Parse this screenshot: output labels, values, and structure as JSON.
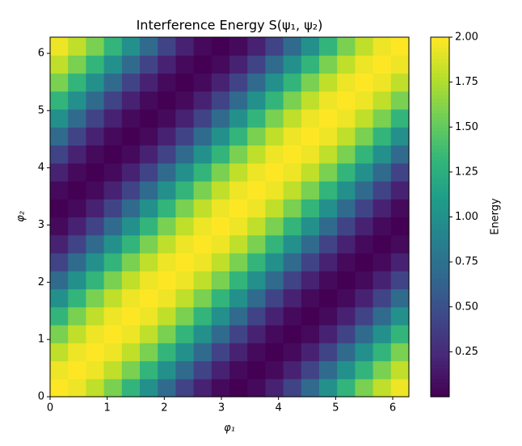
{
  "chart_data": {
    "type": "heatmap",
    "title": "Interference Energy S(ψ₁, ψ₂)",
    "x_label": "φ₁",
    "y_label": "φ₂",
    "colorbar_label": "Energy",
    "colormap": "viridis",
    "xlim": [
      0,
      6.283
    ],
    "ylim": [
      0,
      6.283
    ],
    "xticks": [
      0,
      1,
      2,
      3,
      4,
      5,
      6
    ],
    "yticks": [
      0,
      1,
      2,
      3,
      4,
      5,
      6
    ],
    "clim": [
      0,
      2
    ],
    "cticks": [
      {
        "value": 2,
        "label": "2.00"
      },
      1.75,
      {
        "value": 1.5,
        "label": "1.50"
      },
      1.25,
      {
        "value": 1,
        "label": "1.00"
      },
      0.75,
      {
        "value": 0.5,
        "label": "0.50"
      },
      0.25
    ],
    "z": [
      [
        2,
        1.95,
        1.81,
        1.59,
        1.31,
        1,
        0.69,
        0.41,
        0.19,
        0.05,
        0,
        0.05,
        0.19,
        0.41,
        0.69,
        1,
        1.31,
        1.59,
        1.81,
        1.95
      ],
      [
        1.95,
        2,
        1.95,
        1.81,
        1.59,
        1.31,
        1,
        0.69,
        0.41,
        0.19,
        0.05,
        0,
        0.05,
        0.19,
        0.41,
        0.69,
        1,
        1.31,
        1.59,
        1.81
      ],
      [
        1.81,
        1.95,
        2,
        1.95,
        1.81,
        1.59,
        1.31,
        1,
        0.69,
        0.41,
        0.19,
        0.05,
        0,
        0.05,
        0.19,
        0.41,
        0.69,
        1,
        1.31,
        1.59
      ],
      [
        1.59,
        1.81,
        1.95,
        2,
        1.95,
        1.81,
        1.59,
        1.31,
        1,
        0.69,
        0.41,
        0.19,
        0.05,
        0,
        0.05,
        0.19,
        0.41,
        0.69,
        1,
        1.31
      ],
      [
        1.31,
        1.59,
        1.81,
        1.95,
        2,
        1.95,
        1.81,
        1.59,
        1.31,
        1,
        0.69,
        0.41,
        0.19,
        0.05,
        0,
        0.05,
        0.19,
        0.41,
        0.69,
        1
      ],
      [
        1,
        1.31,
        1.59,
        1.81,
        1.95,
        2,
        1.95,
        1.81,
        1.59,
        1.31,
        1,
        0.69,
        0.41,
        0.19,
        0.05,
        0,
        0.05,
        0.19,
        0.41,
        0.69
      ],
      [
        0.69,
        1,
        1.31,
        1.59,
        1.81,
        1.95,
        2,
        1.95,
        1.81,
        1.59,
        1.31,
        1,
        0.69,
        0.41,
        0.19,
        0.05,
        0,
        0.05,
        0.19,
        0.41
      ],
      [
        0.41,
        0.69,
        1,
        1.31,
        1.59,
        1.81,
        1.95,
        2,
        1.95,
        1.81,
        1.59,
        1.31,
        1,
        0.69,
        0.41,
        0.19,
        0.05,
        0,
        0.05,
        0.19
      ],
      [
        0.19,
        0.41,
        0.69,
        1,
        1.31,
        1.59,
        1.81,
        1.95,
        2,
        1.95,
        1.81,
        1.59,
        1.31,
        1,
        0.69,
        0.41,
        0.19,
        0.05,
        0,
        0.05
      ],
      [
        0.05,
        0.19,
        0.41,
        0.69,
        1,
        1.31,
        1.59,
        1.81,
        1.95,
        2,
        1.95,
        1.81,
        1.59,
        1.31,
        1,
        0.69,
        0.41,
        0.19,
        0.05,
        0
      ],
      [
        0,
        0.05,
        0.19,
        0.41,
        0.69,
        1,
        1.31,
        1.59,
        1.81,
        1.95,
        2,
        1.95,
        1.81,
        1.59,
        1.31,
        1,
        0.69,
        0.41,
        0.19,
        0.05
      ],
      [
        0.05,
        0,
        0.05,
        0.19,
        0.41,
        0.69,
        1,
        1.31,
        1.59,
        1.81,
        1.95,
        2,
        1.95,
        1.81,
        1.59,
        1.31,
        1,
        0.69,
        0.41,
        0.19
      ],
      [
        0.19,
        0.05,
        0,
        0.05,
        0.19,
        0.41,
        0.69,
        1,
        1.31,
        1.59,
        1.81,
        1.95,
        2,
        1.95,
        1.81,
        1.59,
        1.31,
        1,
        0.69,
        0.41
      ],
      [
        0.41,
        0.19,
        0.05,
        0,
        0.05,
        0.19,
        0.41,
        0.69,
        1,
        1.31,
        1.59,
        1.81,
        1.95,
        2,
        1.95,
        1.81,
        1.59,
        1.31,
        1,
        0.69
      ],
      [
        0.69,
        0.41,
        0.19,
        0.05,
        0,
        0.05,
        0.19,
        0.41,
        0.69,
        1,
        1.31,
        1.59,
        1.81,
        1.95,
        2,
        1.95,
        1.81,
        1.59,
        1.31,
        1
      ],
      [
        1,
        0.69,
        0.41,
        0.19,
        0.05,
        0,
        0.05,
        0.19,
        0.41,
        0.69,
        1,
        1.31,
        1.59,
        1.81,
        1.95,
        2,
        1.95,
        1.81,
        1.59,
        1.31
      ],
      [
        1.31,
        1,
        0.69,
        0.41,
        0.19,
        0.05,
        0,
        0.05,
        0.19,
        0.41,
        0.69,
        1,
        1.31,
        1.59,
        1.81,
        1.95,
        2,
        1.95,
        1.81,
        1.59
      ],
      [
        1.59,
        1.31,
        1,
        0.69,
        0.41,
        0.19,
        0.05,
        0,
        0.05,
        0.19,
        0.41,
        0.69,
        1,
        1.31,
        1.59,
        1.81,
        1.95,
        2,
        1.95,
        1.81
      ],
      [
        1.81,
        1.59,
        1.31,
        1,
        0.69,
        0.41,
        0.19,
        0.05,
        0,
        0.05,
        0.19,
        0.41,
        0.69,
        1,
        1.31,
        1.59,
        1.81,
        1.95,
        2,
        1.95
      ],
      [
        1.95,
        1.81,
        1.59,
        1.31,
        1,
        0.69,
        0.41,
        0.19,
        0.05,
        0,
        0.05,
        0.19,
        0.41,
        0.69,
        1,
        1.31,
        1.59,
        1.81,
        1.95,
        2
      ]
    ]
  }
}
